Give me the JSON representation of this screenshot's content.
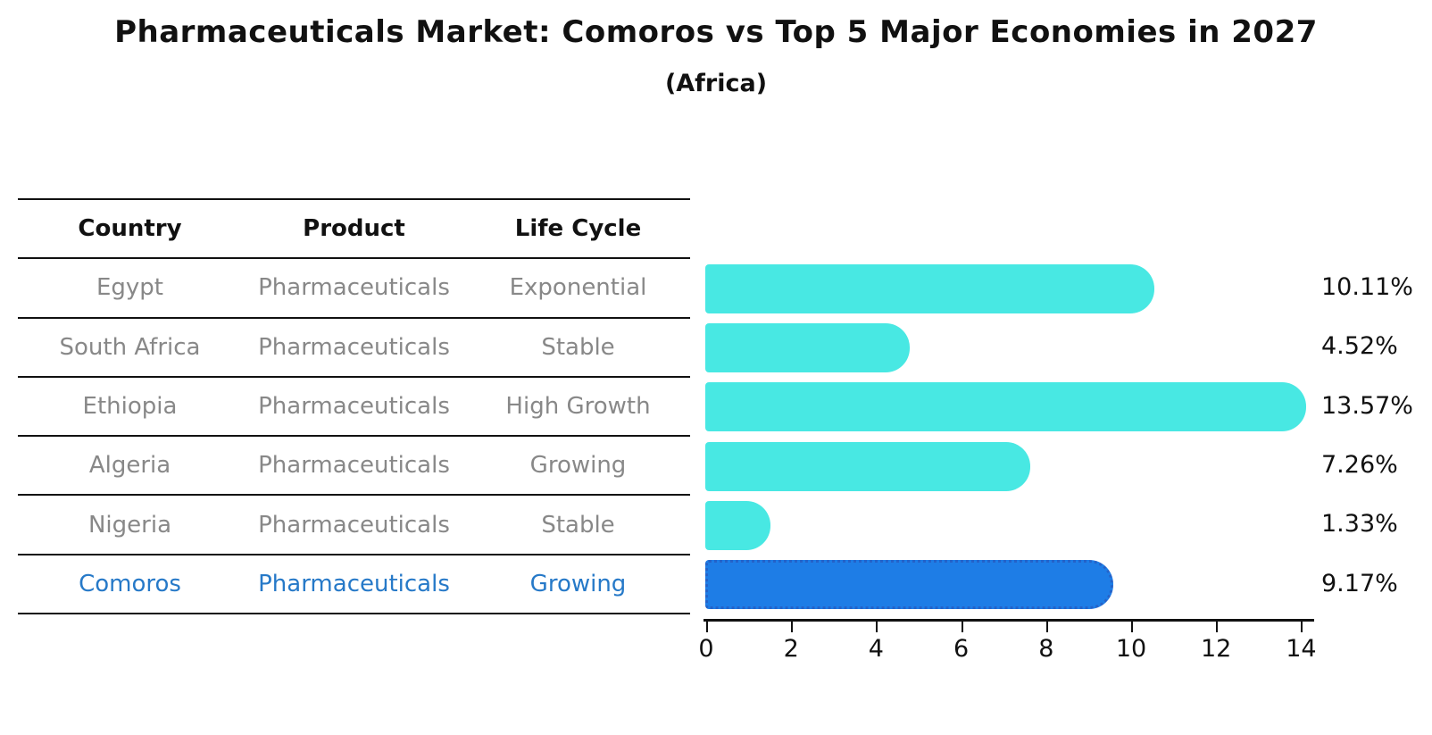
{
  "title": "Pharmaceuticals Market: Comoros vs Top 5 Major Economies in 2027",
  "subtitle": "(Africa)",
  "table": {
    "headers": [
      "Country",
      "Product",
      "Life Cycle"
    ],
    "rows": [
      {
        "country": "Egypt",
        "product": "Pharmaceuticals",
        "life_cycle": "Exponential",
        "highlighted": false
      },
      {
        "country": "South Africa",
        "product": "Pharmaceuticals",
        "life_cycle": "Stable",
        "highlighted": false
      },
      {
        "country": "Ethiopia",
        "product": "Pharmaceuticals",
        "life_cycle": "High Growth",
        "highlighted": false
      },
      {
        "country": "Algeria",
        "product": "Pharmaceuticals",
        "life_cycle": "Growing",
        "highlighted": false
      },
      {
        "country": "Nigeria",
        "product": "Pharmaceuticals",
        "life_cycle": "Stable",
        "highlighted": false
      },
      {
        "country": "Comoros",
        "product": "Pharmaceuticals",
        "life_cycle": "Growing",
        "highlighted": true
      }
    ]
  },
  "chart_data": {
    "type": "bar",
    "orientation": "horizontal",
    "title": "Pharmaceuticals Market: Comoros vs Top 5 Major Economies in 2027",
    "subtitle": "(Africa)",
    "categories": [
      "Egypt",
      "South Africa",
      "Ethiopia",
      "Algeria",
      "Nigeria",
      "Comoros"
    ],
    "values": [
      10.11,
      4.52,
      13.57,
      7.26,
      1.33,
      9.17
    ],
    "value_labels": [
      "10.11%",
      "4.52%",
      "13.57%",
      "7.26%",
      "1.33%",
      "9.17%"
    ],
    "highlight_index": 5,
    "xlabel": "",
    "ylabel": "",
    "xlim": [
      0,
      14
    ],
    "xticks": [
      0,
      2,
      4,
      6,
      8,
      10,
      12,
      14
    ],
    "grid": false,
    "legend": false,
    "colors": {
      "bar": "#48e8e3",
      "highlight_bar": "#1e7de6",
      "highlight_border": "#2563c9",
      "row_text": "#888888",
      "highlight_text": "#2679c8",
      "header_text": "#111111",
      "axis": "#111111",
      "value_label": "#111111"
    }
  }
}
